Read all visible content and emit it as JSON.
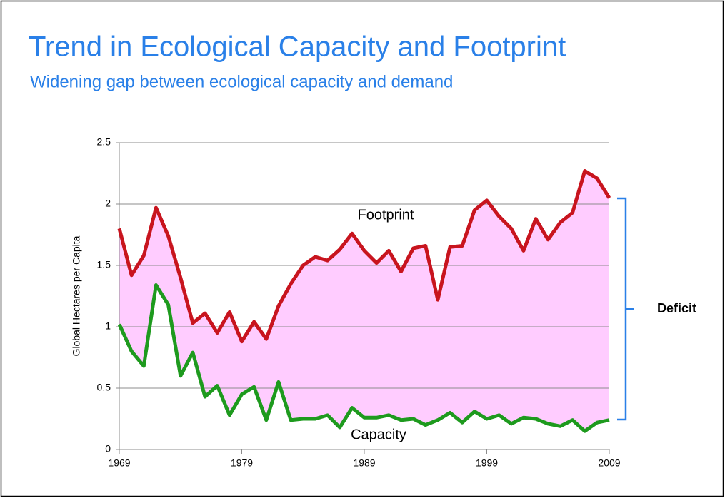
{
  "chart_data": {
    "type": "area-between",
    "title": "Trend in Ecological Capacity and Footprint",
    "subtitle": "Widening gap between ecological capacity and demand",
    "ylabel": "Global Hectares per Capita",
    "annotation": "Deficit",
    "x": [
      1969,
      1970,
      1971,
      1972,
      1973,
      1974,
      1975,
      1976,
      1977,
      1978,
      1979,
      1980,
      1981,
      1982,
      1983,
      1984,
      1985,
      1986,
      1987,
      1988,
      1989,
      1990,
      1991,
      1992,
      1993,
      1994,
      1995,
      1996,
      1997,
      1998,
      1999,
      2000,
      2001,
      2002,
      2003,
      2004,
      2005,
      2006,
      2007,
      2008,
      2009
    ],
    "series": [
      {
        "name": "Footprint",
        "color": "#c8141e",
        "values": [
          1.8,
          1.42,
          1.58,
          1.97,
          1.74,
          1.4,
          1.03,
          1.11,
          0.95,
          1.12,
          0.88,
          1.04,
          0.9,
          1.17,
          1.35,
          1.5,
          1.57,
          1.54,
          1.63,
          1.76,
          1.62,
          1.52,
          1.62,
          1.45,
          1.64,
          1.66,
          1.22,
          1.65,
          1.66,
          1.95,
          2.03,
          1.9,
          1.8,
          1.62,
          1.88,
          1.71,
          1.85,
          1.93,
          2.27,
          2.21,
          2.05
        ]
      },
      {
        "name": "Capacity",
        "color": "#1e9a1e",
        "values": [
          1.02,
          0.8,
          0.68,
          1.34,
          1.18,
          0.6,
          0.79,
          0.43,
          0.52,
          0.28,
          0.45,
          0.51,
          0.24,
          0.55,
          0.24,
          0.25,
          0.25,
          0.28,
          0.18,
          0.34,
          0.26,
          0.26,
          0.28,
          0.24,
          0.25,
          0.2,
          0.24,
          0.3,
          0.22,
          0.31,
          0.25,
          0.28,
          0.21,
          0.26,
          0.25,
          0.21,
          0.19,
          0.24,
          0.15,
          0.22,
          0.24
        ]
      }
    ],
    "fill": "#ffccff",
    "xlim": [
      1969,
      2009
    ],
    "xticks": [
      1969,
      1979,
      1989,
      1999,
      2009
    ],
    "ylim": [
      0,
      2.5
    ],
    "yticks": [
      0,
      0.5,
      1,
      1.5,
      2,
      2.5
    ],
    "grid": true
  }
}
